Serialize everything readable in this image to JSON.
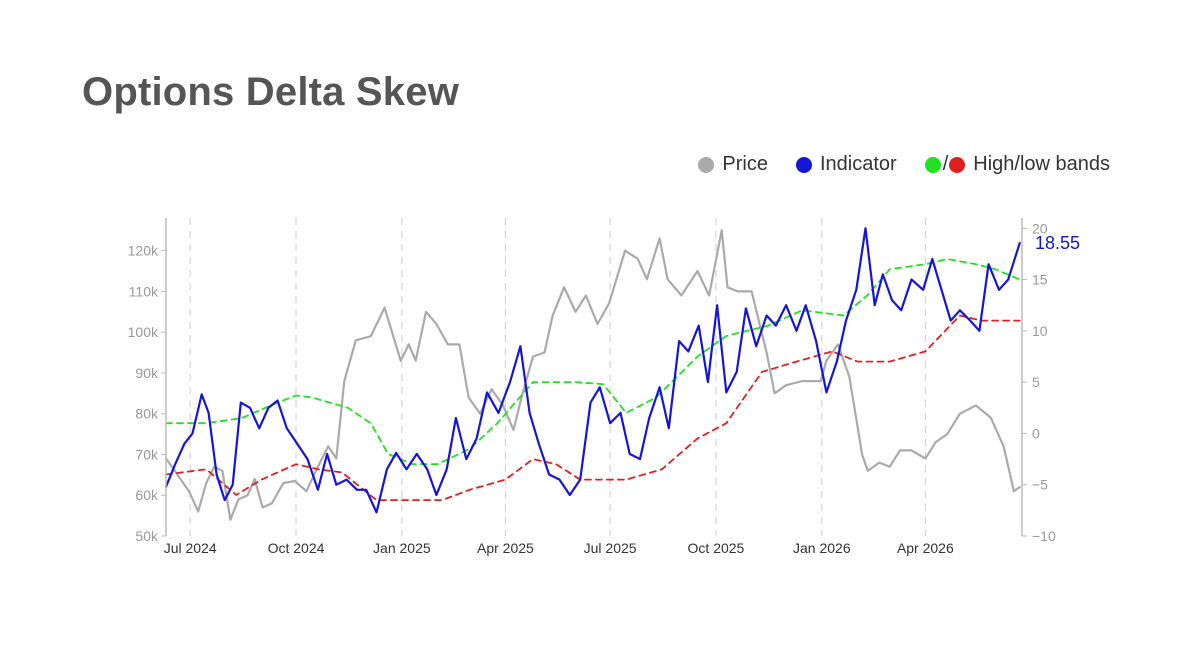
{
  "title": "Options Delta Skew",
  "legend": {
    "price_label": "Price",
    "indicator_label": "Indicator",
    "bands_slash": "/",
    "bands_label": "High/low bands"
  },
  "colors": {
    "price": "#aaaaaa",
    "indicator": "#1515d8",
    "high_band": "#22e022",
    "low_band": "#e02020",
    "axis": "#bbbbbb",
    "tick_text": "#999999",
    "date_text": "#333333",
    "gridline": "#cccccc"
  },
  "chart_data": {
    "type": "line",
    "title": "Options Delta Skew",
    "x_axis": {
      "type": "date",
      "range": [
        "2024-06-10",
        "2026-06-24"
      ],
      "ticks": [
        {
          "date": "2024-07-01",
          "label": "Jul 2024"
        },
        {
          "date": "2024-10-01",
          "label": "Oct 2024"
        },
        {
          "date": "2025-01-01",
          "label": "Jan 2025"
        },
        {
          "date": "2025-04-01",
          "label": "Apr 2025"
        },
        {
          "date": "2025-07-01",
          "label": "Jul 2025"
        },
        {
          "date": "2025-10-01",
          "label": "Oct 2025"
        },
        {
          "date": "2026-01-01",
          "label": "Jan 2026"
        },
        {
          "date": "2026-04-01",
          "label": "Apr 2026"
        }
      ],
      "grid": "dashed vertical"
    },
    "y_axis_left": {
      "series": "Price",
      "range": [
        50000,
        128000
      ],
      "ticks": [
        50000,
        60000,
        70000,
        80000,
        90000,
        100000,
        110000,
        120000
      ],
      "tick_labels": [
        "50k",
        "60k",
        "70k",
        "80k",
        "90k",
        "100k",
        "110k",
        "120k"
      ]
    },
    "y_axis_right": {
      "series": "Indicator",
      "range": [
        -10,
        21
      ],
      "ticks": [
        -10,
        -5,
        0,
        5,
        10,
        15,
        20
      ],
      "tick_labels": [
        "−10",
        "−5",
        "0",
        "5",
        "10",
        "15",
        "20"
      ]
    },
    "last_value_label": "18.55",
    "legend_position": "top-right",
    "series": [
      {
        "name": "Price",
        "axis": "left",
        "style": "solid",
        "points": [
          [
            "2024-06-10",
            69000
          ],
          [
            "2024-06-20",
            65000
          ],
          [
            "2024-06-30",
            61000
          ],
          [
            "2024-07-08",
            56000
          ],
          [
            "2024-07-15",
            63000
          ],
          [
            "2024-07-22",
            67000
          ],
          [
            "2024-07-29",
            66000
          ],
          [
            "2024-08-05",
            54000
          ],
          [
            "2024-08-12",
            59000
          ],
          [
            "2024-08-20",
            60000
          ],
          [
            "2024-08-26",
            64000
          ],
          [
            "2024-09-02",
            57000
          ],
          [
            "2024-09-10",
            58000
          ],
          [
            "2024-09-20",
            63000
          ],
          [
            "2024-09-30",
            63500
          ],
          [
            "2024-10-10",
            61000
          ],
          [
            "2024-10-20",
            67000
          ],
          [
            "2024-10-29",
            72000
          ],
          [
            "2024-11-05",
            69000
          ],
          [
            "2024-11-12",
            88000
          ],
          [
            "2024-11-22",
            98000
          ],
          [
            "2024-12-05",
            99000
          ],
          [
            "2024-12-17",
            106000
          ],
          [
            "2024-12-31",
            93000
          ],
          [
            "2025-01-07",
            97000
          ],
          [
            "2025-01-13",
            93000
          ],
          [
            "2025-01-22",
            105000
          ],
          [
            "2025-01-31",
            102000
          ],
          [
            "2025-02-10",
            97000
          ],
          [
            "2025-02-20",
            97000
          ],
          [
            "2025-02-28",
            84000
          ],
          [
            "2025-03-10",
            80000
          ],
          [
            "2025-03-20",
            86000
          ],
          [
            "2025-03-30",
            82000
          ],
          [
            "2025-04-08",
            76000
          ],
          [
            "2025-04-15",
            84000
          ],
          [
            "2025-04-25",
            94000
          ],
          [
            "2025-05-05",
            95000
          ],
          [
            "2025-05-12",
            104000
          ],
          [
            "2025-05-22",
            111000
          ],
          [
            "2025-06-01",
            105000
          ],
          [
            "2025-06-10",
            109000
          ],
          [
            "2025-06-20",
            102000
          ],
          [
            "2025-06-30",
            107000
          ],
          [
            "2025-07-14",
            120000
          ],
          [
            "2025-07-25",
            118000
          ],
          [
            "2025-08-02",
            113000
          ],
          [
            "2025-08-13",
            123000
          ],
          [
            "2025-08-20",
            113000
          ],
          [
            "2025-09-01",
            109000
          ],
          [
            "2025-09-15",
            115000
          ],
          [
            "2025-09-25",
            109000
          ],
          [
            "2025-10-06",
            125000
          ],
          [
            "2025-10-11",
            111000
          ],
          [
            "2025-10-20",
            110000
          ],
          [
            "2025-11-01",
            110000
          ],
          [
            "2025-11-14",
            95000
          ],
          [
            "2025-11-21",
            85000
          ],
          [
            "2025-12-01",
            87000
          ],
          [
            "2025-12-15",
            88000
          ],
          [
            "2025-12-31",
            88000
          ],
          [
            "2026-01-05",
            93000
          ],
          [
            "2026-01-15",
            97000
          ],
          [
            "2026-01-25",
            89000
          ],
          [
            "2026-02-05",
            70000
          ],
          [
            "2026-02-10",
            66000
          ],
          [
            "2026-02-20",
            68000
          ],
          [
            "2026-03-01",
            67000
          ],
          [
            "2026-03-10",
            71000
          ],
          [
            "2026-03-20",
            71000
          ],
          [
            "2026-04-01",
            69000
          ],
          [
            "2026-04-10",
            73000
          ],
          [
            "2026-04-20",
            75000
          ],
          [
            "2026-05-01",
            80000
          ],
          [
            "2026-05-15",
            82000
          ],
          [
            "2026-05-28",
            79000
          ],
          [
            "2026-06-08",
            72000
          ],
          [
            "2026-06-17",
            61000
          ],
          [
            "2026-06-22",
            62000
          ]
        ]
      },
      {
        "name": "Indicator",
        "axis": "right",
        "style": "solid",
        "points": [
          [
            "2024-06-10",
            -5.2
          ],
          [
            "2024-06-18",
            -3.0
          ],
          [
            "2024-06-26",
            -1.0
          ],
          [
            "2024-07-03",
            0.0
          ],
          [
            "2024-07-11",
            3.8
          ],
          [
            "2024-07-17",
            2.0
          ],
          [
            "2024-07-24",
            -4.0
          ],
          [
            "2024-07-31",
            -6.5
          ],
          [
            "2024-08-07",
            -5.0
          ],
          [
            "2024-08-14",
            3.0
          ],
          [
            "2024-08-22",
            2.5
          ],
          [
            "2024-08-30",
            0.5
          ],
          [
            "2024-09-07",
            2.5
          ],
          [
            "2024-09-15",
            3.2
          ],
          [
            "2024-09-23",
            0.5
          ],
          [
            "2024-10-02",
            -1.0
          ],
          [
            "2024-10-11",
            -2.5
          ],
          [
            "2024-10-20",
            -5.5
          ],
          [
            "2024-10-28",
            -2.0
          ],
          [
            "2024-11-05",
            -5.0
          ],
          [
            "2024-11-14",
            -4.5
          ],
          [
            "2024-11-23",
            -5.5
          ],
          [
            "2024-12-01",
            -5.5
          ],
          [
            "2024-12-10",
            -7.7
          ],
          [
            "2024-12-19",
            -3.5
          ],
          [
            "2024-12-27",
            -1.9
          ],
          [
            "2025-01-05",
            -3.5
          ],
          [
            "2025-01-14",
            -2.0
          ],
          [
            "2025-01-23",
            -3.5
          ],
          [
            "2025-01-31",
            -6.0
          ],
          [
            "2025-02-09",
            -3.5
          ],
          [
            "2025-02-17",
            1.5
          ],
          [
            "2025-02-26",
            -2.5
          ],
          [
            "2025-03-07",
            -0.5
          ],
          [
            "2025-03-16",
            4.0
          ],
          [
            "2025-03-26",
            2.0
          ],
          [
            "2025-04-05",
            5.0
          ],
          [
            "2025-04-14",
            8.5
          ],
          [
            "2025-04-22",
            2.0
          ],
          [
            "2025-04-30",
            -1.0
          ],
          [
            "2025-05-09",
            -4.0
          ],
          [
            "2025-05-18",
            -4.5
          ],
          [
            "2025-05-27",
            -6.0
          ],
          [
            "2025-06-05",
            -4.5
          ],
          [
            "2025-06-14",
            3.0
          ],
          [
            "2025-06-22",
            4.5
          ],
          [
            "2025-07-01",
            1.0
          ],
          [
            "2025-07-10",
            2.0
          ],
          [
            "2025-07-18",
            -2.0
          ],
          [
            "2025-07-27",
            -2.5
          ],
          [
            "2025-08-04",
            1.5
          ],
          [
            "2025-08-13",
            4.5
          ],
          [
            "2025-08-21",
            0.5
          ],
          [
            "2025-08-30",
            9.0
          ],
          [
            "2025-09-07",
            8.0
          ],
          [
            "2025-09-16",
            10.5
          ],
          [
            "2025-09-24",
            5.0
          ],
          [
            "2025-10-02",
            12.5
          ],
          [
            "2025-10-10",
            4.0
          ],
          [
            "2025-10-19",
            6.0
          ],
          [
            "2025-10-27",
            12.2
          ],
          [
            "2025-11-05",
            8.5
          ],
          [
            "2025-11-14",
            11.5
          ],
          [
            "2025-11-22",
            10.5
          ],
          [
            "2025-12-01",
            12.5
          ],
          [
            "2025-12-10",
            10.0
          ],
          [
            "2025-12-18",
            12.5
          ],
          [
            "2025-12-27",
            9.0
          ],
          [
            "2026-01-05",
            4.0
          ],
          [
            "2026-01-14",
            7.0
          ],
          [
            "2026-01-22",
            11.0
          ],
          [
            "2026-01-31",
            14.0
          ],
          [
            "2026-02-08",
            20.0
          ],
          [
            "2026-02-16",
            12.5
          ],
          [
            "2026-02-23",
            15.5
          ],
          [
            "2026-03-03",
            13.0
          ],
          [
            "2026-03-11",
            12.0
          ],
          [
            "2026-03-20",
            15.0
          ],
          [
            "2026-03-30",
            14.0
          ],
          [
            "2026-04-07",
            17.0
          ],
          [
            "2026-04-15",
            14.0
          ],
          [
            "2026-04-23",
            11.0
          ],
          [
            "2026-05-01",
            12.0
          ],
          [
            "2026-05-10",
            11.0
          ],
          [
            "2026-05-18",
            10.0
          ],
          [
            "2026-05-26",
            16.5
          ],
          [
            "2026-06-04",
            14.0
          ],
          [
            "2026-06-12",
            15.0
          ],
          [
            "2026-06-22",
            18.55
          ]
        ]
      },
      {
        "name": "High band",
        "axis": "right",
        "style": "dashed",
        "points": [
          [
            "2024-06-10",
            1.0
          ],
          [
            "2024-07-15",
            1.0
          ],
          [
            "2024-08-15",
            1.5
          ],
          [
            "2024-09-15",
            3.0
          ],
          [
            "2024-10-01",
            3.7
          ],
          [
            "2024-10-15",
            3.5
          ],
          [
            "2024-11-15",
            2.5
          ],
          [
            "2024-12-05",
            1.0
          ],
          [
            "2024-12-20",
            -2.0
          ],
          [
            "2025-01-10",
            -3.0
          ],
          [
            "2025-02-01",
            -3.0
          ],
          [
            "2025-03-01",
            -1.5
          ],
          [
            "2025-03-25",
            1.0
          ],
          [
            "2025-04-25",
            5.0
          ],
          [
            "2025-06-01",
            5.0
          ],
          [
            "2025-06-25",
            4.8
          ],
          [
            "2025-07-15",
            2.0
          ],
          [
            "2025-08-10",
            3.5
          ],
          [
            "2025-09-15",
            7.5
          ],
          [
            "2025-10-10",
            9.5
          ],
          [
            "2025-11-15",
            10.5
          ],
          [
            "2025-12-15",
            12.0
          ],
          [
            "2026-01-20",
            11.5
          ],
          [
            "2026-02-10",
            13.5
          ],
          [
            "2026-03-01",
            16.0
          ],
          [
            "2026-04-01",
            16.5
          ],
          [
            "2026-04-20",
            17.0
          ],
          [
            "2026-05-15",
            16.5
          ],
          [
            "2026-06-01",
            16.0
          ],
          [
            "2026-06-22",
            15.0
          ]
        ]
      },
      {
        "name": "Low band",
        "axis": "right",
        "style": "dashed",
        "points": [
          [
            "2024-06-10",
            -4.0
          ],
          [
            "2024-07-15",
            -3.5
          ],
          [
            "2024-08-10",
            -6.0
          ],
          [
            "2024-09-01",
            -4.5
          ],
          [
            "2024-10-01",
            -3.0
          ],
          [
            "2024-10-20",
            -3.5
          ],
          [
            "2024-11-10",
            -3.8
          ],
          [
            "2024-12-10",
            -6.5
          ],
          [
            "2025-01-10",
            -6.5
          ],
          [
            "2025-02-05",
            -6.5
          ],
          [
            "2025-03-01",
            -5.5
          ],
          [
            "2025-04-01",
            -4.5
          ],
          [
            "2025-04-25",
            -2.5
          ],
          [
            "2025-05-15",
            -3.0
          ],
          [
            "2025-06-05",
            -4.5
          ],
          [
            "2025-07-15",
            -4.5
          ],
          [
            "2025-08-15",
            -3.5
          ],
          [
            "2025-09-15",
            -0.5
          ],
          [
            "2025-10-10",
            1.0
          ],
          [
            "2025-11-10",
            6.0
          ],
          [
            "2025-12-10",
            7.0
          ],
          [
            "2026-01-10",
            8.0
          ],
          [
            "2026-02-01",
            7.0
          ],
          [
            "2026-03-01",
            7.0
          ],
          [
            "2026-04-01",
            8.0
          ],
          [
            "2026-05-01",
            11.5
          ],
          [
            "2026-05-20",
            11.0
          ],
          [
            "2026-06-22",
            11.0
          ]
        ]
      }
    ]
  }
}
